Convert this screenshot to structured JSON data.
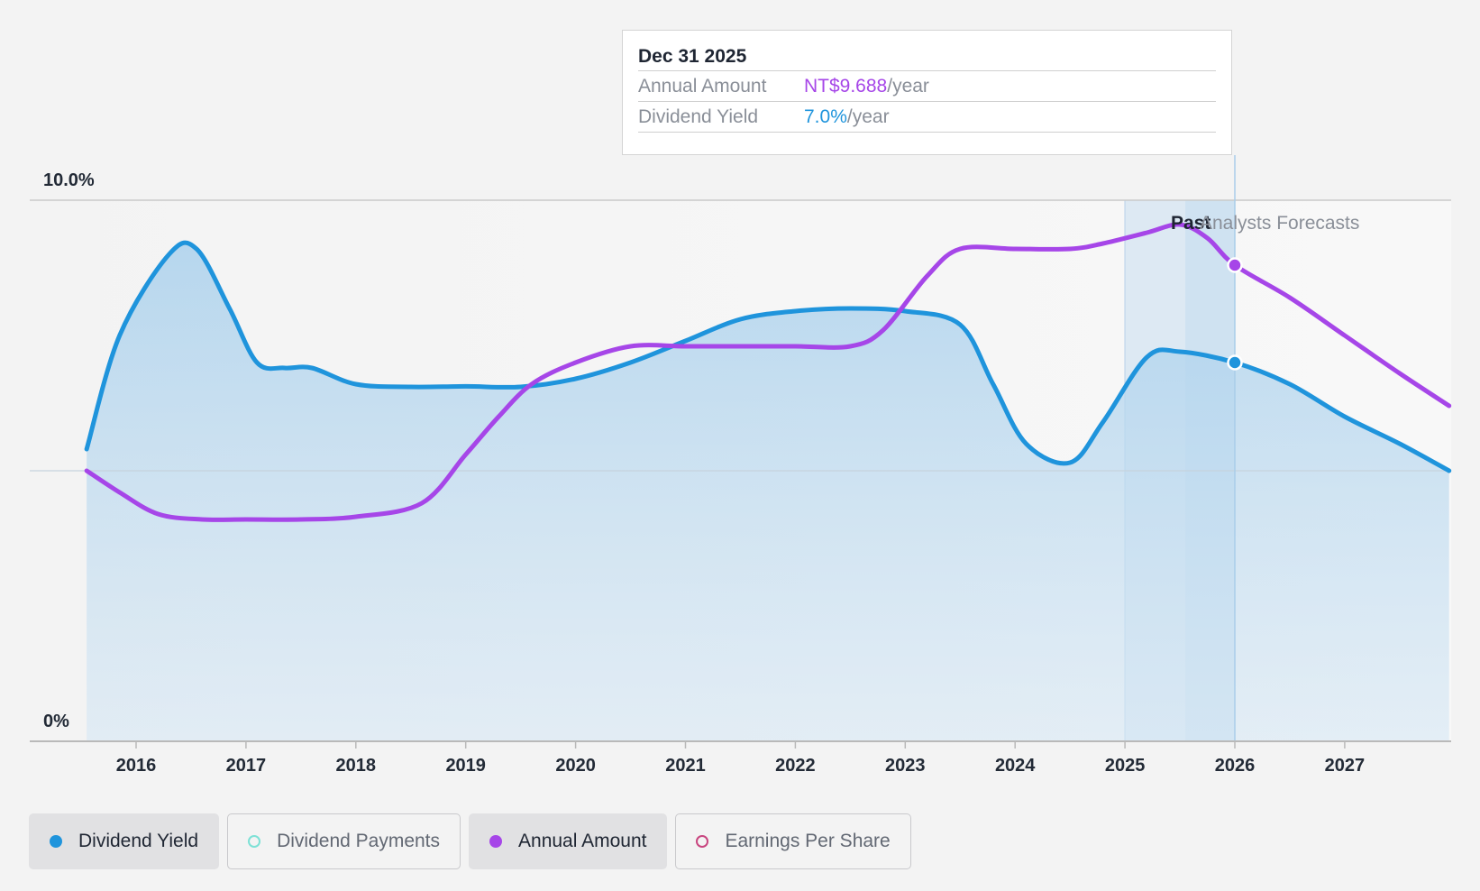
{
  "tooltip": {
    "date": "Dec 31 2025",
    "annual_amount_label": "Annual Amount",
    "annual_amount_value": "NT$9.688",
    "annual_amount_unit": "/year",
    "dividend_yield_label": "Dividend Yield",
    "dividend_yield_value": "7.0%",
    "dividend_yield_unit": "/year"
  },
  "annotations": {
    "past": "Past",
    "forecast": "Analysts Forecasts"
  },
  "legend": {
    "items": [
      {
        "label": "Dividend Yield",
        "active": true,
        "color": "#1f94dc",
        "style": "filled"
      },
      {
        "label": "Dividend Payments",
        "active": false,
        "color": "#7de1d6",
        "style": "ring"
      },
      {
        "label": "Annual Amount",
        "active": true,
        "color": "#a646e8",
        "style": "filled"
      },
      {
        "label": "Earnings Per Share",
        "active": false,
        "color": "#c8457f",
        "style": "ring"
      }
    ]
  },
  "chart_data": {
    "type": "line",
    "title": "",
    "xlabel": "",
    "ylabel": "",
    "x_ticks": [
      "2016",
      "2017",
      "2018",
      "2019",
      "2020",
      "2021",
      "2022",
      "2023",
      "2024",
      "2025",
      "2026",
      "2027"
    ],
    "xlim": [
      2015.55,
      2027.95
    ],
    "y_ticks": [
      "0%",
      "10.0%"
    ],
    "ylim": [
      0,
      10
    ],
    "grid": "horizontal",
    "past_forecast_divider_x": 2026.0,
    "highlight_band_x": [
      2025.0,
      2026.0
    ],
    "series": [
      {
        "name": "Dividend Yield",
        "color": "#1f94dc",
        "fill": true,
        "points": [
          [
            2015.55,
            5.4
          ],
          [
            2015.85,
            7.5
          ],
          [
            2016.3,
            9.0
          ],
          [
            2016.55,
            9.1
          ],
          [
            2016.85,
            8.0
          ],
          [
            2017.1,
            7.0
          ],
          [
            2017.35,
            6.9
          ],
          [
            2017.6,
            6.9
          ],
          [
            2018.0,
            6.6
          ],
          [
            2018.5,
            6.55
          ],
          [
            2019.0,
            6.56
          ],
          [
            2019.5,
            6.55
          ],
          [
            2020.0,
            6.7
          ],
          [
            2020.5,
            7.0
          ],
          [
            2021.0,
            7.4
          ],
          [
            2021.5,
            7.8
          ],
          [
            2022.0,
            7.95
          ],
          [
            2022.5,
            8.0
          ],
          [
            2023.0,
            7.95
          ],
          [
            2023.5,
            7.7
          ],
          [
            2023.8,
            6.6
          ],
          [
            2024.1,
            5.5
          ],
          [
            2024.5,
            5.15
          ],
          [
            2024.8,
            5.9
          ],
          [
            2025.2,
            7.1
          ],
          [
            2025.5,
            7.2
          ],
          [
            2026.0,
            7.0
          ],
          [
            2026.5,
            6.6
          ],
          [
            2027.0,
            6.0
          ],
          [
            2027.5,
            5.5
          ],
          [
            2027.95,
            5.0
          ]
        ]
      },
      {
        "name": "Annual Amount",
        "color": "#a646e8",
        "fill": false,
        "points": [
          [
            2015.55,
            5.0
          ],
          [
            2015.85,
            4.6
          ],
          [
            2016.2,
            4.2
          ],
          [
            2016.6,
            4.1
          ],
          [
            2017.0,
            4.1
          ],
          [
            2017.5,
            4.1
          ],
          [
            2018.0,
            4.15
          ],
          [
            2018.6,
            4.4
          ],
          [
            2019.0,
            5.3
          ],
          [
            2019.3,
            6.0
          ],
          [
            2019.6,
            6.6
          ],
          [
            2020.0,
            7.0
          ],
          [
            2020.5,
            7.3
          ],
          [
            2021.0,
            7.3
          ],
          [
            2021.5,
            7.3
          ],
          [
            2022.0,
            7.3
          ],
          [
            2022.5,
            7.3
          ],
          [
            2022.8,
            7.6
          ],
          [
            2023.2,
            8.6
          ],
          [
            2023.5,
            9.1
          ],
          [
            2024.0,
            9.1
          ],
          [
            2024.5,
            9.1
          ],
          [
            2024.8,
            9.2
          ],
          [
            2025.2,
            9.4
          ],
          [
            2025.5,
            9.55
          ],
          [
            2025.75,
            9.3
          ],
          [
            2026.0,
            8.8
          ],
          [
            2026.5,
            8.2
          ],
          [
            2027.0,
            7.5
          ],
          [
            2027.5,
            6.8
          ],
          [
            2027.95,
            6.2
          ]
        ]
      }
    ],
    "markers": [
      {
        "series": "Dividend Yield",
        "x": 2026.0,
        "y": 7.0
      },
      {
        "series": "Annual Amount",
        "x": 2026.0,
        "y": 8.8
      }
    ]
  }
}
